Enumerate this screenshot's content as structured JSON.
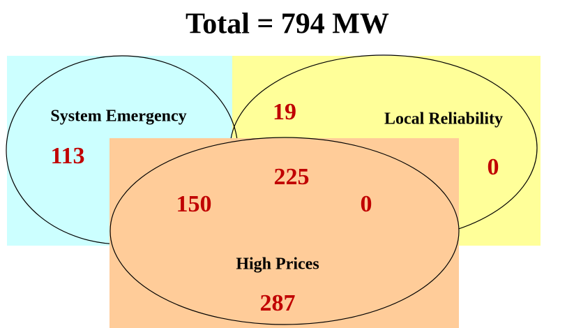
{
  "title": "Total = 794 MW",
  "sets": [
    {
      "label": "System Emergency"
    },
    {
      "label": "Local Reliability"
    },
    {
      "label": "High Prices"
    }
  ],
  "regions": {
    "system_emergency_only": 113,
    "system_emergency_local_reliability": 19,
    "local_reliability_only": 0,
    "all_three": 225,
    "system_emergency_high_prices": 150,
    "local_reliability_high_prices": 0,
    "high_prices_only": 287
  }
}
